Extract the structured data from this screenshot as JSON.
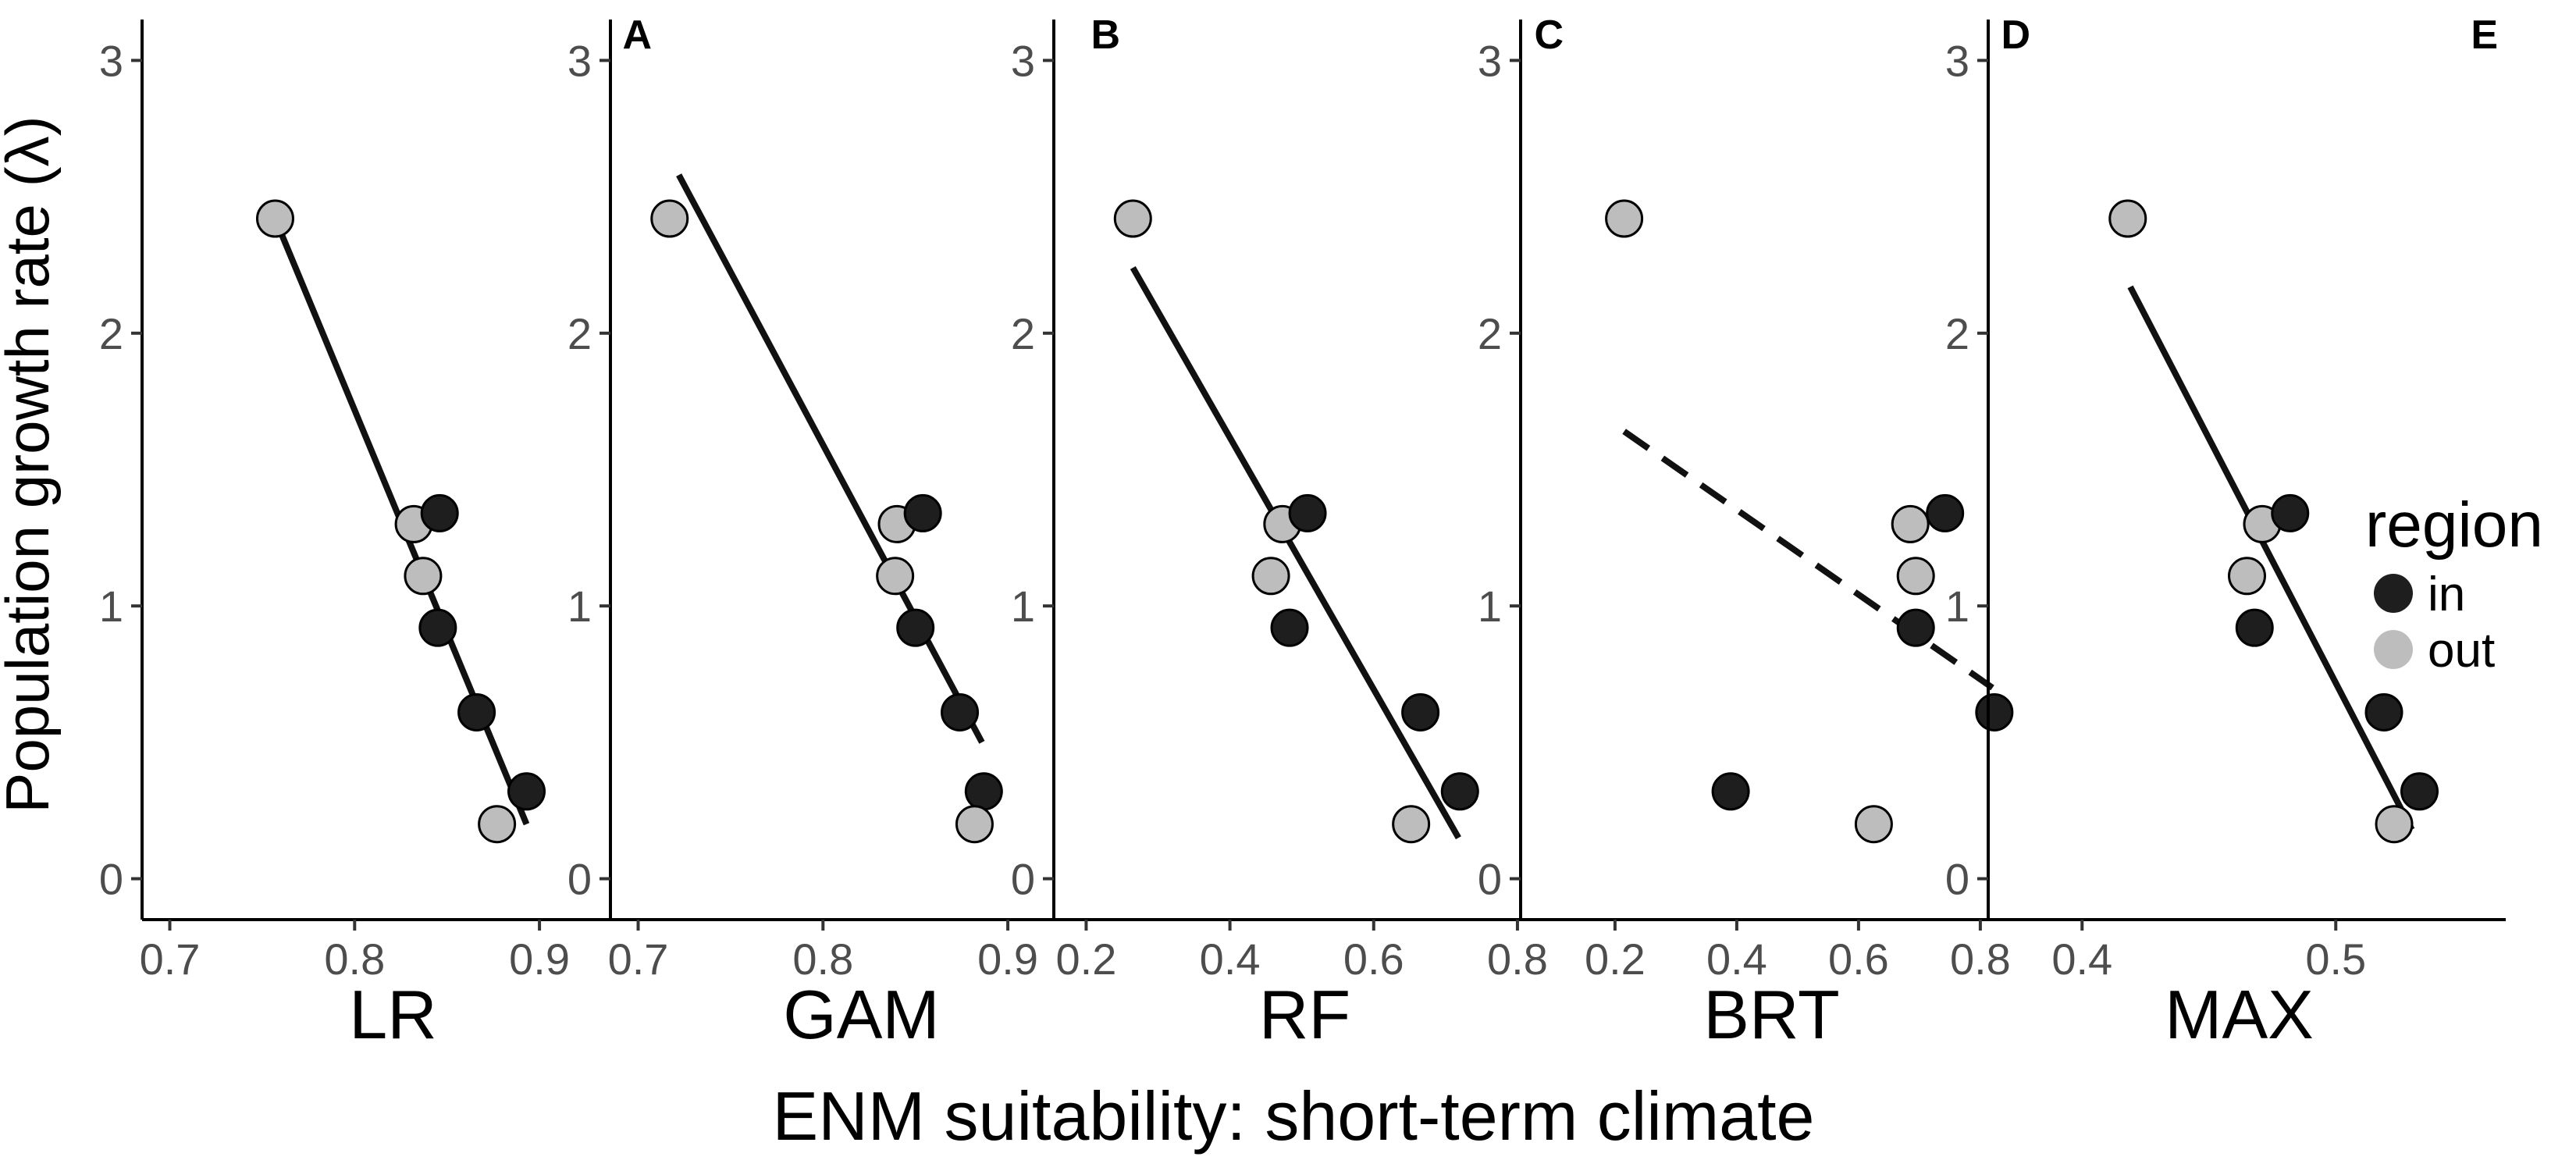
{
  "figure": {
    "ylabel": "Population growth rate (λ)",
    "xlabel": "ENM suitability: short-term climate"
  },
  "legend": {
    "title": "region",
    "items": [
      {
        "label": "in",
        "color": "#1e1e1e"
      },
      {
        "label": "out",
        "color": "#bdbdbd"
      }
    ]
  },
  "colors": {
    "in": "#1e1e1e",
    "out": "#bdbdbd",
    "line": "#111111"
  },
  "chart_data": [
    {
      "type": "scatter",
      "panel": "A",
      "xlabel": "LR",
      "ylabel": "",
      "xlim": [
        0.685,
        0.965
      ],
      "ylim": [
        -0.15,
        3.15
      ],
      "xticks": [
        0.7,
        0.8,
        0.9
      ],
      "yticks": [
        0,
        1,
        2,
        3
      ],
      "points": [
        {
          "x": 0.757,
          "y": 2.42,
          "region": "out"
        },
        {
          "x": 0.832,
          "y": 1.3,
          "region": "out"
        },
        {
          "x": 0.837,
          "y": 1.11,
          "region": "out"
        },
        {
          "x": 0.846,
          "y": 1.34,
          "region": "in"
        },
        {
          "x": 0.845,
          "y": 0.92,
          "region": "in"
        },
        {
          "x": 0.866,
          "y": 0.61,
          "region": "in"
        },
        {
          "x": 0.893,
          "y": 0.32,
          "region": "in"
        },
        {
          "x": 0.877,
          "y": 0.2,
          "region": "out"
        }
      ],
      "fit": {
        "x": [
          0.757,
          0.893
        ],
        "y": [
          2.42,
          0.2
        ],
        "style": "solid"
      }
    },
    {
      "type": "scatter",
      "panel": "B",
      "xlabel": "GAM",
      "ylabel": "",
      "xlim": [
        0.685,
        0.965
      ],
      "ylim": [
        -0.15,
        3.15
      ],
      "xticks": [
        0.7,
        0.8,
        0.9
      ],
      "yticks": [
        0,
        1,
        2,
        3
      ],
      "points": [
        {
          "x": 0.717,
          "y": 2.42,
          "region": "out"
        },
        {
          "x": 0.84,
          "y": 1.3,
          "region": "out"
        },
        {
          "x": 0.839,
          "y": 1.11,
          "region": "out"
        },
        {
          "x": 0.854,
          "y": 1.34,
          "region": "in"
        },
        {
          "x": 0.85,
          "y": 0.92,
          "region": "in"
        },
        {
          "x": 0.874,
          "y": 0.61,
          "region": "in"
        },
        {
          "x": 0.887,
          "y": 0.32,
          "region": "in"
        },
        {
          "x": 0.882,
          "y": 0.2,
          "region": "out"
        }
      ],
      "fit": {
        "x": [
          0.722,
          0.886
        ],
        "y": [
          2.58,
          0.5
        ],
        "style": "solid"
      }
    },
    {
      "type": "scatter",
      "panel": "C",
      "xlabel": "RF",
      "ylabel": "",
      "xlim": [
        0.155,
        0.875
      ],
      "ylim": [
        -0.15,
        3.15
      ],
      "xticks": [
        0.2,
        0.4,
        0.6,
        0.8
      ],
      "yticks": [
        0,
        1,
        2,
        3
      ],
      "points": [
        {
          "x": 0.265,
          "y": 2.42,
          "region": "out"
        },
        {
          "x": 0.473,
          "y": 1.3,
          "region": "out"
        },
        {
          "x": 0.457,
          "y": 1.11,
          "region": "out"
        },
        {
          "x": 0.508,
          "y": 1.34,
          "region": "in"
        },
        {
          "x": 0.483,
          "y": 0.92,
          "region": "in"
        },
        {
          "x": 0.665,
          "y": 0.61,
          "region": "in"
        },
        {
          "x": 0.72,
          "y": 0.32,
          "region": "in"
        },
        {
          "x": 0.652,
          "y": 0.2,
          "region": "out"
        }
      ],
      "fit": {
        "x": [
          0.265,
          0.718
        ],
        "y": [
          2.24,
          0.15
        ],
        "style": "solid"
      }
    },
    {
      "type": "scatter",
      "panel": "D",
      "xlabel": "BRT",
      "ylabel": "",
      "xlim": [
        0.045,
        0.895
      ],
      "ylim": [
        -0.15,
        3.15
      ],
      "xticks": [
        0.2,
        0.4,
        0.6,
        0.8
      ],
      "yticks": [
        0,
        1,
        2,
        3
      ],
      "points": [
        {
          "x": 0.215,
          "y": 2.42,
          "region": "out"
        },
        {
          "x": 0.685,
          "y": 1.3,
          "region": "out"
        },
        {
          "x": 0.694,
          "y": 1.11,
          "region": "out"
        },
        {
          "x": 0.742,
          "y": 1.34,
          "region": "in"
        },
        {
          "x": 0.694,
          "y": 0.92,
          "region": "in"
        },
        {
          "x": 0.823,
          "y": 0.61,
          "region": "in"
        },
        {
          "x": 0.39,
          "y": 0.32,
          "region": "in"
        },
        {
          "x": 0.625,
          "y": 0.2,
          "region": "out"
        }
      ],
      "fit": {
        "x": [
          0.215,
          0.82
        ],
        "y": [
          1.64,
          0.7
        ],
        "style": "dashed"
      }
    },
    {
      "type": "scatter",
      "panel": "E",
      "xlabel": "MAX",
      "ylabel": "",
      "xlim": [
        0.363,
        0.567
      ],
      "ylim": [
        -0.15,
        3.15
      ],
      "xticks": [
        0.4,
        0.5
      ],
      "yticks": [
        0,
        1,
        2,
        3
      ],
      "points": [
        {
          "x": 0.418,
          "y": 2.42,
          "region": "out"
        },
        {
          "x": 0.471,
          "y": 1.3,
          "region": "out"
        },
        {
          "x": 0.465,
          "y": 1.11,
          "region": "out"
        },
        {
          "x": 0.482,
          "y": 1.34,
          "region": "in"
        },
        {
          "x": 0.468,
          "y": 0.92,
          "region": "in"
        },
        {
          "x": 0.519,
          "y": 0.61,
          "region": "in"
        },
        {
          "x": 0.533,
          "y": 0.32,
          "region": "in"
        },
        {
          "x": 0.523,
          "y": 0.2,
          "region": "out"
        }
      ],
      "fit": {
        "x": [
          0.419,
          0.53
        ],
        "y": [
          2.17,
          0.18
        ],
        "style": "solid"
      }
    }
  ]
}
